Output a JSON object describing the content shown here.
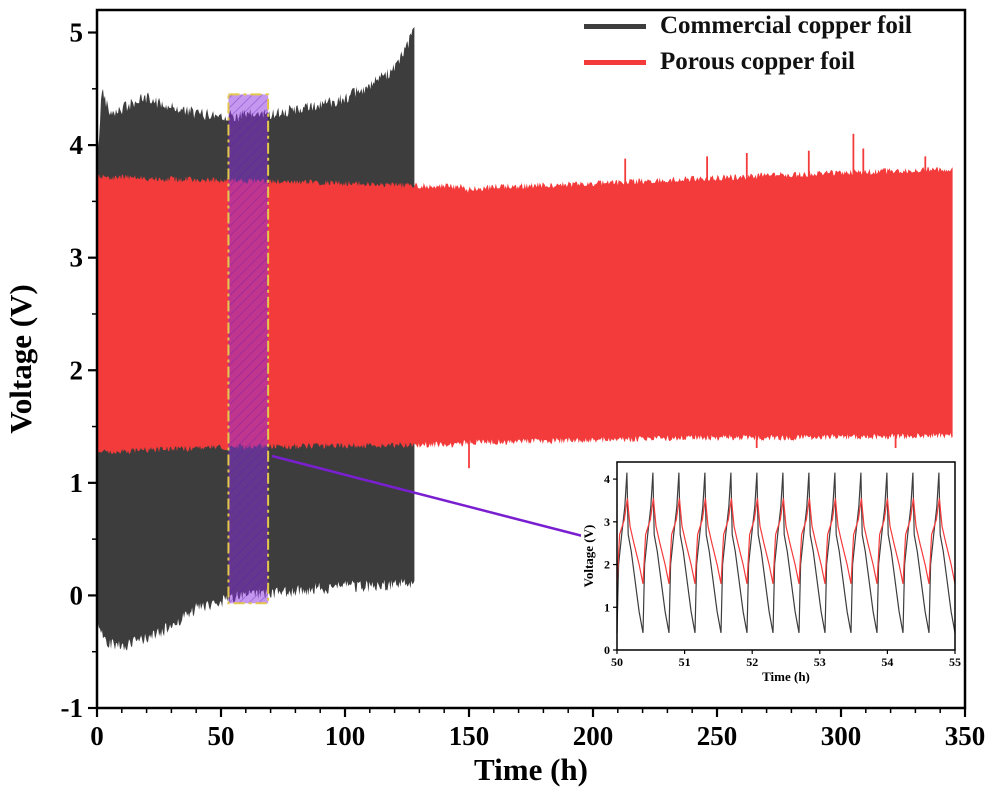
{
  "page": {
    "background": "#ffffff"
  },
  "legend": {
    "items": [
      {
        "label": "Commercial copper foil",
        "color": "#3d3d3d"
      },
      {
        "label": "Porous copper foil",
        "color": "#f43b3b"
      }
    ]
  },
  "chart_data": {
    "type": "line",
    "title": "",
    "main": {
      "xlabel": "Time (h)",
      "ylabel": "Voltage (V)",
      "xlim": [
        0,
        350
      ],
      "ylim": [
        -1,
        5.2
      ],
      "x_ticks": [
        0,
        50,
        100,
        150,
        200,
        250,
        300,
        350
      ],
      "y_ticks": [
        -1,
        0,
        1,
        2,
        3,
        4,
        5
      ],
      "x_minor_step": 10,
      "y_minor_step": 0.5,
      "series": [
        {
          "name": "Commercial copper foil",
          "color": "#3d3d3d",
          "type": "envelope-band",
          "edge_jitter": 0.055,
          "x": [
            0,
            2,
            5,
            10,
            15,
            20,
            28,
            40,
            55,
            70,
            85,
            100,
            110,
            118,
            124,
            127,
            128
          ],
          "upper": [
            3.8,
            4.5,
            4.3,
            4.32,
            4.38,
            4.42,
            4.35,
            4.28,
            4.26,
            4.28,
            4.33,
            4.42,
            4.52,
            4.65,
            4.82,
            4.97,
            5.0
          ],
          "lower": [
            -0.25,
            -0.35,
            -0.42,
            -0.45,
            -0.42,
            -0.38,
            -0.3,
            -0.12,
            -0.02,
            0.02,
            0.05,
            0.08,
            0.08,
            0.1,
            0.1,
            0.12,
            0.15
          ]
        },
        {
          "name": "Porous copper foil",
          "color": "#f43b3b",
          "type": "envelope-band",
          "edge_jitter": 0.028,
          "x": [
            0,
            30,
            60,
            100,
            147,
            149,
            160,
            200,
            240,
            280,
            320,
            345
          ],
          "upper": [
            3.72,
            3.7,
            3.68,
            3.66,
            3.63,
            3.6,
            3.63,
            3.66,
            3.7,
            3.74,
            3.77,
            3.79
          ],
          "lower": [
            1.27,
            1.3,
            1.32,
            1.33,
            1.34,
            1.36,
            1.36,
            1.38,
            1.4,
            1.4,
            1.41,
            1.42
          ],
          "spikes": [
            {
              "x": 150,
              "v": 1.13,
              "edge": "bottom"
            },
            {
              "x": 213,
              "v": 3.88,
              "edge": "top"
            },
            {
              "x": 246,
              "v": 3.9,
              "edge": "top"
            },
            {
              "x": 262,
              "v": 3.93,
              "edge": "top"
            },
            {
              "x": 266,
              "v": 1.2,
              "edge": "bottom"
            },
            {
              "x": 287,
              "v": 3.95,
              "edge": "top"
            },
            {
              "x": 305,
              "v": 4.1,
              "edge": "top"
            },
            {
              "x": 309,
              "v": 3.97,
              "edge": "top"
            },
            {
              "x": 322,
              "v": 1.27,
              "edge": "bottom"
            },
            {
              "x": 334,
              "v": 3.9,
              "edge": "top"
            }
          ]
        }
      ]
    },
    "highlight": {
      "x0": 53,
      "x1": 69,
      "y0": -0.07,
      "y1": 4.45,
      "fill": "#8b2fe0",
      "fill_opacity": 0.5,
      "border_color": "#e3c84b",
      "hatch_color": "#5d17b8"
    },
    "annotation_arrow": {
      "color": "#7a1fd0"
    },
    "inset": {
      "xlabel": "Time (h)",
      "ylabel": "Voltage (V)",
      "xlim": [
        50,
        55
      ],
      "ylim": [
        0,
        4.4
      ],
      "x_ticks": [
        50,
        51,
        52,
        53,
        54,
        55
      ],
      "y_ticks": [
        0,
        1,
        2,
        3,
        4
      ],
      "cycles": 13,
      "series": [
        {
          "name": "Commercial copper foil",
          "color": "#3d3d3d",
          "cycle_shape": [
            [
              0,
              0.4
            ],
            [
              0.06,
              2.0
            ],
            [
              0.18,
              2.7
            ],
            [
              0.3,
              3.35
            ],
            [
              0.38,
              4.15
            ],
            [
              0.43,
              2.7
            ],
            [
              0.55,
              2.3
            ],
            [
              0.7,
              1.6
            ],
            [
              0.85,
              0.9
            ],
            [
              1,
              0.4
            ]
          ]
        },
        {
          "name": "Porous copper foil",
          "color": "#f43b3b",
          "cycle_shape": [
            [
              0,
              1.55
            ],
            [
              0.1,
              2.7
            ],
            [
              0.28,
              3.05
            ],
            [
              0.4,
              3.55
            ],
            [
              0.5,
              2.9
            ],
            [
              0.65,
              2.5
            ],
            [
              0.85,
              2.0
            ],
            [
              1,
              1.55
            ]
          ]
        }
      ]
    }
  }
}
